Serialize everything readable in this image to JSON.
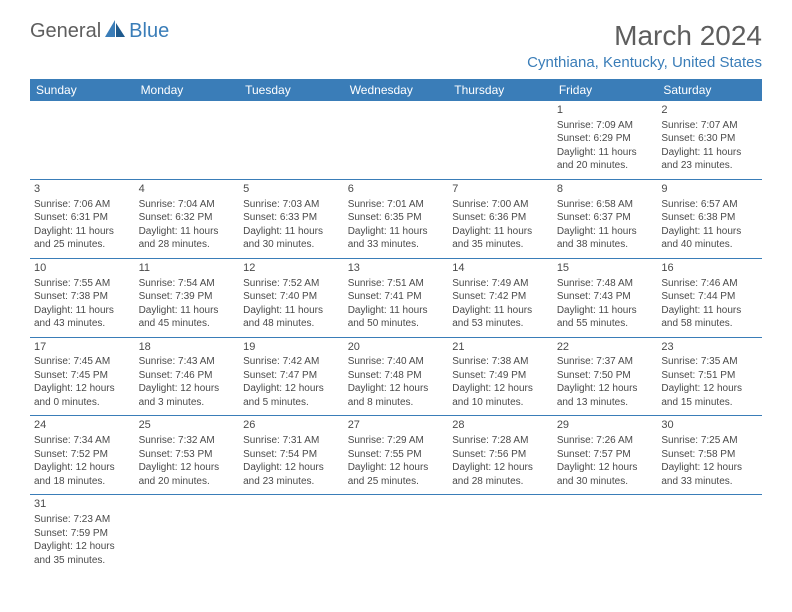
{
  "logo": {
    "text1": "General",
    "text2": "Blue"
  },
  "title": "March 2024",
  "location": "Cynthiana, Kentucky, United States",
  "colors": {
    "header_bg": "#3a7db8",
    "header_fg": "#ffffff",
    "text": "#4a4a4a",
    "accent": "#3a7db8",
    "logo_gray": "#5e5e5e"
  },
  "weekdays": [
    "Sunday",
    "Monday",
    "Tuesday",
    "Wednesday",
    "Thursday",
    "Friday",
    "Saturday"
  ],
  "weeks": [
    [
      null,
      null,
      null,
      null,
      null,
      {
        "n": "1",
        "sr": "Sunrise: 7:09 AM",
        "ss": "Sunset: 6:29 PM",
        "dl": "Daylight: 11 hours and 20 minutes."
      },
      {
        "n": "2",
        "sr": "Sunrise: 7:07 AM",
        "ss": "Sunset: 6:30 PM",
        "dl": "Daylight: 11 hours and 23 minutes."
      }
    ],
    [
      {
        "n": "3",
        "sr": "Sunrise: 7:06 AM",
        "ss": "Sunset: 6:31 PM",
        "dl": "Daylight: 11 hours and 25 minutes."
      },
      {
        "n": "4",
        "sr": "Sunrise: 7:04 AM",
        "ss": "Sunset: 6:32 PM",
        "dl": "Daylight: 11 hours and 28 minutes."
      },
      {
        "n": "5",
        "sr": "Sunrise: 7:03 AM",
        "ss": "Sunset: 6:33 PM",
        "dl": "Daylight: 11 hours and 30 minutes."
      },
      {
        "n": "6",
        "sr": "Sunrise: 7:01 AM",
        "ss": "Sunset: 6:35 PM",
        "dl": "Daylight: 11 hours and 33 minutes."
      },
      {
        "n": "7",
        "sr": "Sunrise: 7:00 AM",
        "ss": "Sunset: 6:36 PM",
        "dl": "Daylight: 11 hours and 35 minutes."
      },
      {
        "n": "8",
        "sr": "Sunrise: 6:58 AM",
        "ss": "Sunset: 6:37 PM",
        "dl": "Daylight: 11 hours and 38 minutes."
      },
      {
        "n": "9",
        "sr": "Sunrise: 6:57 AM",
        "ss": "Sunset: 6:38 PM",
        "dl": "Daylight: 11 hours and 40 minutes."
      }
    ],
    [
      {
        "n": "10",
        "sr": "Sunrise: 7:55 AM",
        "ss": "Sunset: 7:38 PM",
        "dl": "Daylight: 11 hours and 43 minutes."
      },
      {
        "n": "11",
        "sr": "Sunrise: 7:54 AM",
        "ss": "Sunset: 7:39 PM",
        "dl": "Daylight: 11 hours and 45 minutes."
      },
      {
        "n": "12",
        "sr": "Sunrise: 7:52 AM",
        "ss": "Sunset: 7:40 PM",
        "dl": "Daylight: 11 hours and 48 minutes."
      },
      {
        "n": "13",
        "sr": "Sunrise: 7:51 AM",
        "ss": "Sunset: 7:41 PM",
        "dl": "Daylight: 11 hours and 50 minutes."
      },
      {
        "n": "14",
        "sr": "Sunrise: 7:49 AM",
        "ss": "Sunset: 7:42 PM",
        "dl": "Daylight: 11 hours and 53 minutes."
      },
      {
        "n": "15",
        "sr": "Sunrise: 7:48 AM",
        "ss": "Sunset: 7:43 PM",
        "dl": "Daylight: 11 hours and 55 minutes."
      },
      {
        "n": "16",
        "sr": "Sunrise: 7:46 AM",
        "ss": "Sunset: 7:44 PM",
        "dl": "Daylight: 11 hours and 58 minutes."
      }
    ],
    [
      {
        "n": "17",
        "sr": "Sunrise: 7:45 AM",
        "ss": "Sunset: 7:45 PM",
        "dl": "Daylight: 12 hours and 0 minutes."
      },
      {
        "n": "18",
        "sr": "Sunrise: 7:43 AM",
        "ss": "Sunset: 7:46 PM",
        "dl": "Daylight: 12 hours and 3 minutes."
      },
      {
        "n": "19",
        "sr": "Sunrise: 7:42 AM",
        "ss": "Sunset: 7:47 PM",
        "dl": "Daylight: 12 hours and 5 minutes."
      },
      {
        "n": "20",
        "sr": "Sunrise: 7:40 AM",
        "ss": "Sunset: 7:48 PM",
        "dl": "Daylight: 12 hours and 8 minutes."
      },
      {
        "n": "21",
        "sr": "Sunrise: 7:38 AM",
        "ss": "Sunset: 7:49 PM",
        "dl": "Daylight: 12 hours and 10 minutes."
      },
      {
        "n": "22",
        "sr": "Sunrise: 7:37 AM",
        "ss": "Sunset: 7:50 PM",
        "dl": "Daylight: 12 hours and 13 minutes."
      },
      {
        "n": "23",
        "sr": "Sunrise: 7:35 AM",
        "ss": "Sunset: 7:51 PM",
        "dl": "Daylight: 12 hours and 15 minutes."
      }
    ],
    [
      {
        "n": "24",
        "sr": "Sunrise: 7:34 AM",
        "ss": "Sunset: 7:52 PM",
        "dl": "Daylight: 12 hours and 18 minutes."
      },
      {
        "n": "25",
        "sr": "Sunrise: 7:32 AM",
        "ss": "Sunset: 7:53 PM",
        "dl": "Daylight: 12 hours and 20 minutes."
      },
      {
        "n": "26",
        "sr": "Sunrise: 7:31 AM",
        "ss": "Sunset: 7:54 PM",
        "dl": "Daylight: 12 hours and 23 minutes."
      },
      {
        "n": "27",
        "sr": "Sunrise: 7:29 AM",
        "ss": "Sunset: 7:55 PM",
        "dl": "Daylight: 12 hours and 25 minutes."
      },
      {
        "n": "28",
        "sr": "Sunrise: 7:28 AM",
        "ss": "Sunset: 7:56 PM",
        "dl": "Daylight: 12 hours and 28 minutes."
      },
      {
        "n": "29",
        "sr": "Sunrise: 7:26 AM",
        "ss": "Sunset: 7:57 PM",
        "dl": "Daylight: 12 hours and 30 minutes."
      },
      {
        "n": "30",
        "sr": "Sunrise: 7:25 AM",
        "ss": "Sunset: 7:58 PM",
        "dl": "Daylight: 12 hours and 33 minutes."
      }
    ],
    [
      {
        "n": "31",
        "sr": "Sunrise: 7:23 AM",
        "ss": "Sunset: 7:59 PM",
        "dl": "Daylight: 12 hours and 35 minutes."
      },
      null,
      null,
      null,
      null,
      null,
      null
    ]
  ]
}
